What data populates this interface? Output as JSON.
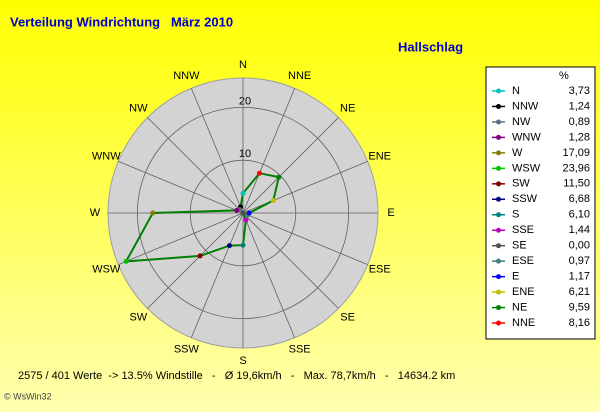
{
  "chart_data": {
    "type": "radar",
    "title": "Verteilung Windrichtung   März 2010",
    "subtitle": "Hallschlag",
    "categories": [
      "N",
      "NNW",
      "NW",
      "WNW",
      "W",
      "WSW",
      "SW",
      "SSW",
      "S",
      "SSE",
      "SE",
      "ESE",
      "E",
      "ENE",
      "NE",
      "NNE"
    ],
    "values": [
      3.73,
      1.24,
      0.89,
      1.28,
      17.09,
      23.96,
      11.5,
      6.68,
      6.1,
      1.44,
      0.0,
      0.97,
      1.17,
      6.21,
      9.59,
      8.16
    ],
    "value_labels": [
      "3,73",
      "1,24",
      "0,89",
      "1,28",
      "17,09",
      "23,96",
      "11,50",
      "6,68",
      "6,10",
      "1,44",
      "0,00",
      "0,97",
      "1,17",
      "6,21",
      "9,59",
      "8,16"
    ],
    "colors": [
      "#00c0c0",
      "#000000",
      "#607080",
      "#800080",
      "#808000",
      "#00c000",
      "#800000",
      "#000080",
      "#008080",
      "#c000c0",
      "#505050",
      "#408080",
      "#0000ff",
      "#c0c000",
      "#008000",
      "#ff0000"
    ],
    "line_color": "#008000",
    "legend_header": "%",
    "rlim": [
      0,
      25
    ],
    "rticks": [
      10,
      20
    ],
    "footer": "2575 / 401 Werte  -> 13.5% Windstille   -   Ø 19,6km/h   -   Max. 78,7km/h   -   14634.2 km",
    "credit": "© WsWin32"
  }
}
